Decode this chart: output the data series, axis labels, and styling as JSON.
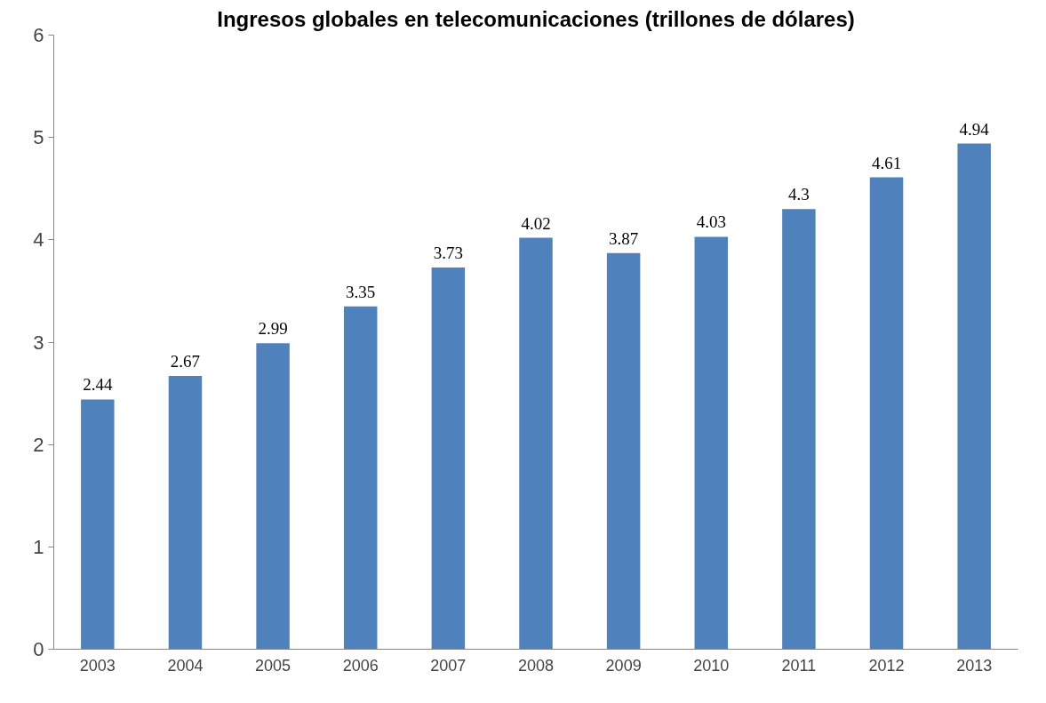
{
  "chart_data": {
    "type": "bar",
    "title": "Ingresos globales en telecomunicaciones (trillones de dólares)",
    "categories": [
      "2003",
      "2004",
      "2005",
      "2006",
      "2007",
      "2008",
      "2009",
      "2010",
      "2011",
      "2012",
      "2013"
    ],
    "values": [
      2.44,
      2.67,
      2.99,
      3.35,
      3.73,
      4.02,
      3.87,
      4.03,
      4.3,
      4.61,
      4.94
    ],
    "color": "#4f81bd",
    "ylim": [
      0,
      6
    ],
    "yticks": [
      0,
      1,
      2,
      3,
      4,
      5,
      6
    ],
    "grid": false,
    "data_labels": true
  }
}
